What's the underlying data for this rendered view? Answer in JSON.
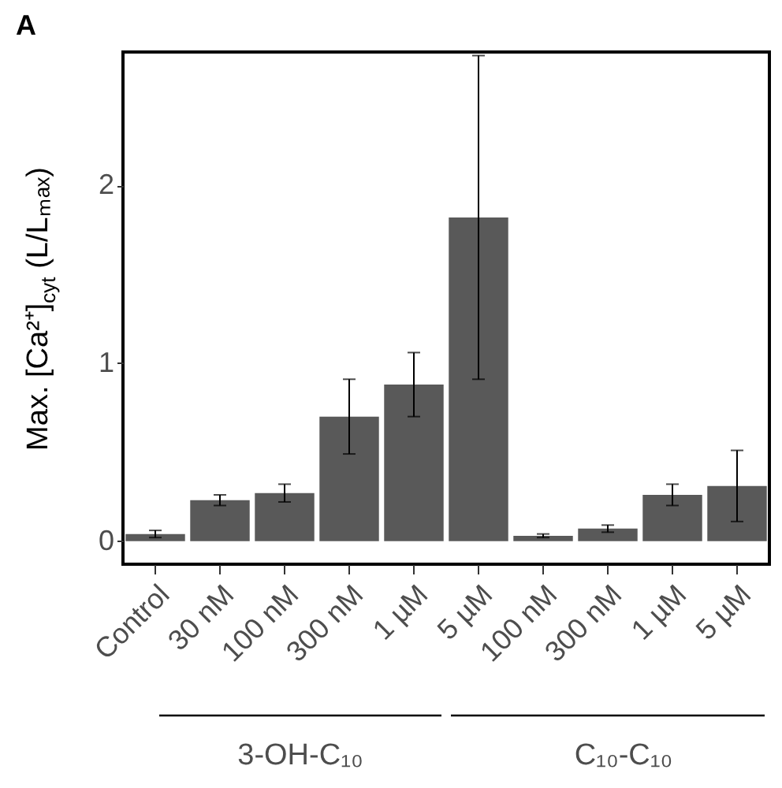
{
  "chart_data": {
    "type": "bar",
    "title": "A",
    "ylabel": "Max. [Ca²⁺]$_{cyt}$ (L/Lₘₐₓ)",
    "categories": [
      "Control",
      "30 nM",
      "100 nM",
      "300 nM",
      "1 µM",
      "5 µM",
      "100 nM",
      "300 nM",
      "1 µM",
      "5 µM"
    ],
    "values": [
      0.04,
      0.23,
      0.27,
      0.7,
      0.88,
      1.82,
      0.03,
      0.07,
      0.26,
      0.31
    ],
    "errors": [
      0.02,
      0.03,
      0.05,
      0.21,
      0.18,
      0.91,
      0.01,
      0.02,
      0.06,
      0.2
    ],
    "color": "#595959",
    "ylim": [
      -0.13,
      2.75
    ],
    "yticks": [
      0,
      1,
      2
    ],
    "grid": false,
    "annotations": [
      "3-OH-C₁₀",
      "C₁₀-C₁₀"
    ]
  }
}
